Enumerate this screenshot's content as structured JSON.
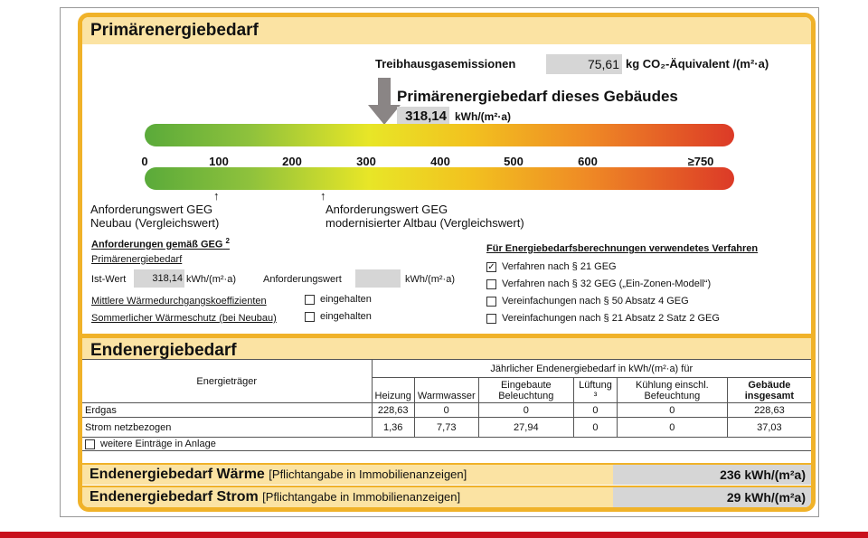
{
  "primaer": {
    "title": "Primärenergiebedarf",
    "treibhaus_label": "Treibhausgasemissionen",
    "treibhaus_value": "75,61",
    "treibhaus_unit": "kg CO₂-Äquivalent /(m²·a)",
    "gebaeude_label": "Primärenergiebedarf dieses Gebäudes",
    "gebaeude_value": "318,14",
    "gebaeude_unit": "kWh/(m²·a)",
    "scale_ticks": [
      "0",
      "100",
      "200",
      "300",
      "400",
      "500",
      "600",
      "≥750"
    ],
    "indicator_value": 318.14,
    "neubau_marker_value": 100,
    "altbau_marker_value": 245,
    "neubau_label_1": "Anforderungswert GEG",
    "neubau_label_2": "Neubau (Vergleichswert)",
    "altbau_label_1": "Anforderungswert GEG",
    "altbau_label_2": "modernisierter Altbau (Vergleichswert)"
  },
  "anforderungen": {
    "title": "Anforderungen gemäß GEG",
    "sup": "2",
    "sub": "Primärenergiebedarf",
    "ist_label": "Ist-Wert",
    "ist_value": "318,14",
    "ist_unit": "kWh/(m²·a)",
    "anf_label": "Anforderungswert",
    "anf_value": "",
    "anf_unit": "kWh/(m²·a)",
    "waerme_label": "Mittlere Wärmedurchgangskoeffizienten",
    "waerme_check": "eingehalten",
    "sommer_label": "Sommerlicher Wärmeschutz (bei Neubau)",
    "sommer_check": "eingehalten"
  },
  "verfahren": {
    "title": "Für Energiebedarfsberechnungen verwendetes Verfahren",
    "options": [
      {
        "label": "Verfahren nach § 21 GEG",
        "checked": true
      },
      {
        "label": "Verfahren nach § 32 GEG („Ein-Zonen-Modell“)",
        "checked": false
      },
      {
        "label": "Vereinfachungen nach § 50 Absatz 4 GEG",
        "checked": false
      },
      {
        "label": "Vereinfachungen nach § 21 Absatz 2 Satz 2 GEG",
        "checked": false
      }
    ]
  },
  "enden": {
    "title": "Endenergiebedarf",
    "carrier_header": "Energieträger",
    "group_header": "Jährlicher Endenergiebedarf in kWh/(m²·a) für",
    "columns": [
      "Heizung",
      "Warmwasser",
      "Eingebaute Beleuchtung",
      "Lüftung ³",
      "Kühlung einschl. Befeuchtung",
      "Gebäude insgesamt"
    ],
    "rows": [
      {
        "name": "Erdgas",
        "values": [
          "228,63",
          "0",
          "0",
          "0",
          "0",
          "228,63"
        ]
      },
      {
        "name": "Strom netzbezogen",
        "values": [
          "1,36",
          "7,73",
          "27,94",
          "0",
          "0",
          "37,03"
        ]
      }
    ],
    "weitere": "weitere Einträge in Anlage",
    "waerme_title": "Endenergiebedarf Wärme",
    "waerme_note": "[Pflichtangabe in Immobilienanzeigen]",
    "waerme_value": "236  kWh/(m²a)",
    "strom_title": "Endenergiebedarf Strom",
    "strom_note": "[Pflichtangabe in Immobilienanzeigen]",
    "strom_value": "29  kWh/(m²a)"
  },
  "colors": {
    "frame": "#f0b229",
    "band": "#fbe3a3",
    "bottom_bar": "#c8101c"
  }
}
